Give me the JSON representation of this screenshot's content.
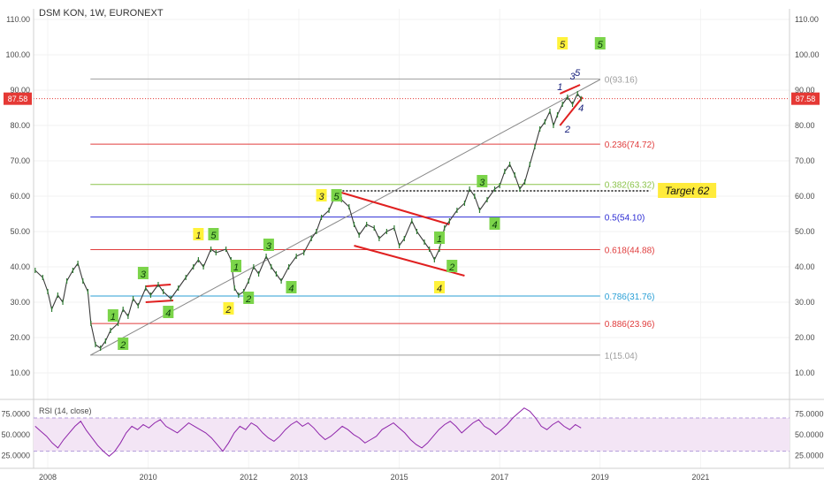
{
  "header": {
    "symbol_line": "DSM KON, 1W, EURONEXT"
  },
  "chart_data": {
    "type": "line",
    "title": "DSM KON, 1W, EURONEXT",
    "x_ticks": [
      "2008",
      "2010",
      "2012",
      "2013",
      "2015",
      "2017",
      "2019",
      "2021"
    ],
    "y_ticks": [
      "10.00",
      "20.00",
      "30.00",
      "40.00",
      "50.00",
      "60.00",
      "70.00",
      "80.00",
      "90.00",
      "100.00",
      "110.00"
    ],
    "ylim": [
      3,
      113
    ],
    "price_label": "87.58",
    "price_value": 87.58,
    "series": [
      {
        "values": [
          [
            2007.75,
            39
          ],
          [
            2007.9,
            37
          ],
          [
            2008.0,
            33
          ],
          [
            2008.08,
            28
          ],
          [
            2008.2,
            32
          ],
          [
            2008.3,
            30
          ],
          [
            2008.38,
            36
          ],
          [
            2008.5,
            39
          ],
          [
            2008.6,
            41
          ],
          [
            2008.7,
            36
          ],
          [
            2008.8,
            33
          ],
          [
            2008.86,
            24
          ],
          [
            2008.95,
            18
          ],
          [
            2009.05,
            17
          ],
          [
            2009.15,
            19
          ],
          [
            2009.25,
            22
          ],
          [
            2009.4,
            24
          ],
          [
            2009.5,
            28
          ],
          [
            2009.6,
            26
          ],
          [
            2009.7,
            31
          ],
          [
            2009.8,
            29
          ],
          [
            2009.95,
            34
          ],
          [
            2010.05,
            32
          ],
          [
            2010.2,
            35
          ],
          [
            2010.3,
            33
          ],
          [
            2010.45,
            31
          ],
          [
            2010.6,
            34
          ],
          [
            2010.75,
            37
          ],
          [
            2010.9,
            40
          ],
          [
            2011.0,
            42
          ],
          [
            2011.1,
            40
          ],
          [
            2011.25,
            45
          ],
          [
            2011.35,
            44
          ],
          [
            2011.55,
            45
          ],
          [
            2011.65,
            42
          ],
          [
            2011.72,
            34
          ],
          [
            2011.8,
            32
          ],
          [
            2011.9,
            33
          ],
          [
            2012.0,
            36
          ],
          [
            2012.1,
            40
          ],
          [
            2012.2,
            38
          ],
          [
            2012.35,
            43
          ],
          [
            2012.45,
            40
          ],
          [
            2012.55,
            38
          ],
          [
            2012.65,
            36
          ],
          [
            2012.8,
            40
          ],
          [
            2012.95,
            43
          ],
          [
            2013.1,
            44
          ],
          [
            2013.25,
            48
          ],
          [
            2013.35,
            50
          ],
          [
            2013.45,
            54
          ],
          [
            2013.6,
            56
          ],
          [
            2013.72,
            60
          ],
          [
            2013.85,
            59
          ],
          [
            2014.0,
            57
          ],
          [
            2014.1,
            52
          ],
          [
            2014.2,
            49
          ],
          [
            2014.35,
            52
          ],
          [
            2014.5,
            51
          ],
          [
            2014.6,
            48
          ],
          [
            2014.75,
            50
          ],
          [
            2014.9,
            51
          ],
          [
            2015.0,
            46
          ],
          [
            2015.1,
            48
          ],
          [
            2015.25,
            53
          ],
          [
            2015.35,
            50
          ],
          [
            2015.5,
            47
          ],
          [
            2015.6,
            45
          ],
          [
            2015.7,
            42
          ],
          [
            2015.8,
            45
          ],
          [
            2015.9,
            51
          ],
          [
            2016.0,
            53
          ],
          [
            2016.15,
            56
          ],
          [
            2016.3,
            58
          ],
          [
            2016.4,
            62
          ],
          [
            2016.5,
            60
          ],
          [
            2016.6,
            56
          ],
          [
            2016.75,
            59
          ],
          [
            2016.9,
            62
          ],
          [
            2017.0,
            63
          ],
          [
            2017.1,
            67
          ],
          [
            2017.2,
            69
          ],
          [
            2017.3,
            66
          ],
          [
            2017.4,
            62
          ],
          [
            2017.5,
            64
          ],
          [
            2017.6,
            69
          ],
          [
            2017.7,
            74
          ],
          [
            2017.8,
            79
          ],
          [
            2017.9,
            81
          ],
          [
            2018.0,
            84
          ],
          [
            2018.07,
            80
          ],
          [
            2018.15,
            83
          ],
          [
            2018.25,
            86
          ],
          [
            2018.35,
            88
          ],
          [
            2018.45,
            86
          ],
          [
            2018.55,
            89
          ],
          [
            2018.62,
            87.58
          ]
        ]
      }
    ],
    "fib_levels": [
      {
        "label": "0(93.16)",
        "value": 93.16,
        "color": "#9e9e9e"
      },
      {
        "label": "0.236(74.72)",
        "value": 74.72,
        "color": "#e03c3c"
      },
      {
        "label": "0.382(63.32)",
        "value": 63.32,
        "color": "#8bc34a"
      },
      {
        "label": "0.5(54.10)",
        "value": 54.1,
        "color": "#2d2dd4"
      },
      {
        "label": "0.618(44.88)",
        "value": 44.88,
        "color": "#e03c3c"
      },
      {
        "label": "0.786(31.76)",
        "value": 31.76,
        "color": "#2a9fd6"
      },
      {
        "label": "0.886(23.96)",
        "value": 23.96,
        "color": "#e03c3c"
      },
      {
        "label": "1(15.04)",
        "value": 15.04,
        "color": "#9e9e9e"
      }
    ],
    "target_label": "Target 62",
    "target_value": 61.5,
    "wave_labels": [
      {
        "text": "1",
        "x": 2009.3,
        "y": 26,
        "style": "green"
      },
      {
        "text": "2",
        "x": 2009.5,
        "y": 18,
        "style": "green"
      },
      {
        "text": "3",
        "x": 2009.9,
        "y": 38,
        "style": "green"
      },
      {
        "text": "4",
        "x": 2010.4,
        "y": 27,
        "style": "green"
      },
      {
        "text": "1",
        "x": 2011.0,
        "y": 49,
        "style": "yellow"
      },
      {
        "text": "5",
        "x": 2011.3,
        "y": 49,
        "style": "green"
      },
      {
        "text": "1",
        "x": 2011.75,
        "y": 40,
        "style": "green"
      },
      {
        "text": "2",
        "x": 2011.6,
        "y": 28,
        "style": "yellow"
      },
      {
        "text": "2",
        "x": 2012.0,
        "y": 31,
        "style": "green"
      },
      {
        "text": "3",
        "x": 2012.4,
        "y": 46,
        "style": "green"
      },
      {
        "text": "4",
        "x": 2012.85,
        "y": 34,
        "style": "green"
      },
      {
        "text": "3",
        "x": 2013.45,
        "y": 60,
        "style": "yellow"
      },
      {
        "text": "5",
        "x": 2013.75,
        "y": 60,
        "style": "green"
      },
      {
        "text": "1",
        "x": 2015.8,
        "y": 48,
        "style": "green"
      },
      {
        "text": "2",
        "x": 2016.05,
        "y": 40,
        "style": "green"
      },
      {
        "text": "4",
        "x": 2015.8,
        "y": 34,
        "style": "yellow"
      },
      {
        "text": "3",
        "x": 2016.65,
        "y": 64,
        "style": "green"
      },
      {
        "text": "4",
        "x": 2016.9,
        "y": 52,
        "style": "green"
      },
      {
        "text": "5",
        "x": 2018.25,
        "y": 103,
        "style": "yellow"
      },
      {
        "text": "5",
        "x": 2019.0,
        "y": 103,
        "style": "green"
      },
      {
        "text": "1",
        "x": 2018.2,
        "y": 91,
        "style": "navy"
      },
      {
        "text": "3",
        "x": 2018.45,
        "y": 94,
        "style": "navy"
      },
      {
        "text": "5",
        "x": 2018.55,
        "y": 95,
        "style": "navy"
      },
      {
        "text": "4",
        "x": 2018.62,
        "y": 85,
        "style": "navy"
      },
      {
        "text": "2",
        "x": 2018.35,
        "y": 79,
        "style": "navy"
      }
    ]
  },
  "rsi_panel": {
    "label": "RSI (14, close)",
    "y_ticks": [
      "75.0000",
      "50.0000",
      "25.0000"
    ],
    "values": [
      60,
      54,
      48,
      40,
      34,
      44,
      52,
      60,
      66,
      55,
      46,
      37,
      30,
      24,
      30,
      40,
      52,
      60,
      56,
      62,
      58,
      64,
      68,
      60,
      56,
      52,
      58,
      64,
      60,
      56,
      52,
      46,
      38,
      30,
      40,
      52,
      60,
      56,
      64,
      60,
      52,
      46,
      42,
      48,
      56,
      62,
      66,
      60,
      64,
      58,
      50,
      44,
      48,
      54,
      60,
      56,
      50,
      46,
      40,
      44,
      48,
      56,
      60,
      64,
      58,
      52,
      44,
      38,
      34,
      40,
      48,
      56,
      62,
      66,
      60,
      52,
      58,
      64,
      68,
      60,
      56,
      50,
      56,
      62,
      70,
      76,
      82,
      78,
      70,
      60,
      56,
      62,
      66,
      60,
      56,
      62,
      58
    ]
  }
}
